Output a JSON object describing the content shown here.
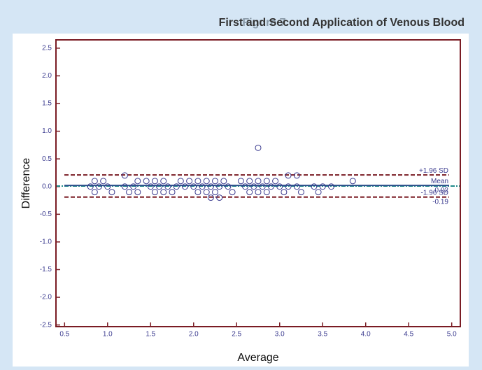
{
  "chart_data": {
    "type": "scatter",
    "figure_label": "Figure 7.",
    "title": "First and Second Application of Venous Blood",
    "x_label": "Average",
    "y_label": "Difference",
    "xlim": [
      0.4,
      5.1
    ],
    "ylim": [
      -2.53,
      2.65
    ],
    "xticks": [
      0.5,
      {
        "value": 1.0,
        "label": "1.0"
      },
      1.5,
      {
        "value": 2.0,
        "label": "2.0"
      },
      2.5,
      {
        "value": 3.0,
        "label": "3.0"
      },
      3.5,
      {
        "value": 4.0,
        "label": "4.0"
      },
      4.5,
      {
        "value": 5.0,
        "label": "5.0"
      }
    ],
    "yticks": [
      -2.5,
      {
        "value": -2.0,
        "label": "-2.0"
      },
      -1.5,
      {
        "value": -1.0,
        "label": "-1.0"
      },
      -0.5,
      {
        "value": 0.0,
        "label": "0.0"
      },
      0.5,
      {
        "value": 1.0,
        "label": "1.0"
      },
      1.5,
      {
        "value": 2.0,
        "label": "2.0"
      },
      2.5
    ],
    "series": [
      {
        "color": "#3b3b8f",
        "x": [
          0.85,
          0.95,
          1.35,
          1.45,
          1.55,
          1.65,
          1.85,
          1.95,
          2.05,
          2.15,
          2.25,
          2.35,
          2.55,
          2.65,
          2.75,
          2.85,
          2.95,
          3.85,
          0.8,
          0.9,
          1.0,
          1.2,
          1.3,
          1.5,
          1.6,
          1.7,
          1.8,
          1.9,
          2.0,
          2.1,
          2.2,
          2.3,
          2.4,
          2.6,
          2.7,
          2.8,
          2.9,
          3.0,
          3.1,
          3.2,
          3.4,
          3.5,
          3.6,
          0.85,
          1.05,
          1.25,
          1.35,
          1.55,
          1.65,
          1.75,
          2.05,
          2.15,
          2.25,
          2.45,
          2.65,
          2.75,
          2.85,
          3.05,
          3.25,
          3.45,
          2.2,
          2.3,
          1.2,
          3.1,
          3.2,
          2.75
        ],
        "values": [
          0.1,
          0.1,
          0.1,
          0.1,
          0.1,
          0.1,
          0.1,
          0.1,
          0.1,
          0.1,
          0.1,
          0.1,
          0.1,
          0.1,
          0.1,
          0.1,
          0.1,
          0.1,
          0,
          0,
          0,
          0,
          0,
          0,
          0,
          0,
          0,
          0,
          0,
          0,
          0,
          0,
          0,
          0,
          0,
          0,
          0,
          0,
          0,
          0,
          0,
          0,
          0,
          -0.1,
          -0.1,
          -0.1,
          -0.1,
          -0.1,
          -0.1,
          -0.1,
          -0.1,
          -0.1,
          -0.1,
          -0.1,
          -0.1,
          -0.1,
          -0.1,
          -0.1,
          -0.1,
          -0.1,
          -0.2,
          -0.2,
          0.2,
          0.2,
          0.2,
          0.7
        ]
      }
    ],
    "reference_lines": [
      {
        "label": "+1.96 SD",
        "value": 0.21,
        "color": "#7a1c24",
        "dashed": true
      },
      {
        "label": "Mean",
        "value": 0.02,
        "value_label": "0.02",
        "color": "#2a4f8a",
        "dashed": false
      },
      {
        "label": "-1.96 SD",
        "value": -0.19,
        "value_label": "-0.19",
        "color": "#7a1c24",
        "dashed": true
      }
    ],
    "fit_line": {
      "value": 0.01,
      "color": "#1f8a8a"
    },
    "frame_color": "#7a1c24"
  }
}
